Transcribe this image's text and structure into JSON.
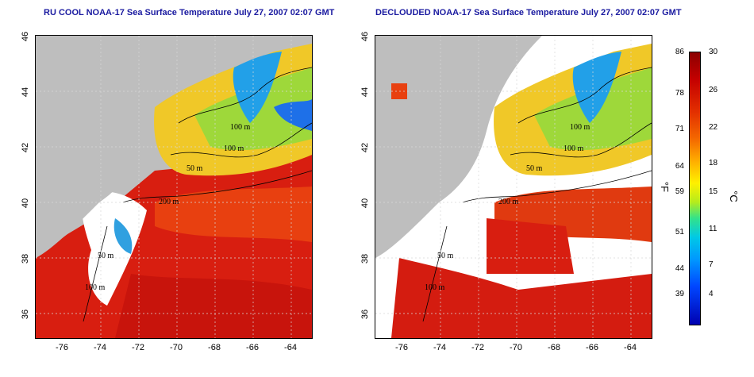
{
  "left_panel": {
    "title": "RU COOL NOAA-17 Sea Surface Temperature July 27, 2007 02:07 GMT"
  },
  "right_panel": {
    "title": "DECLOUDED NOAA-17 Sea Surface Temperature July 27, 2007 02:07 GMT"
  },
  "axes": {
    "lat_ticks": [
      "46",
      "44",
      "42",
      "40",
      "38",
      "36"
    ],
    "lon_ticks": [
      "-76",
      "-74",
      "-72",
      "-70",
      "-68",
      "-66",
      "-64"
    ]
  },
  "contour_labels": {
    "left": [
      "100 m",
      "100 m",
      "50 m",
      "200 m",
      "100 m",
      "50 m"
    ],
    "right": [
      "100 m",
      "100 m",
      "50 m",
      "200 m",
      "100 m",
      "50 m"
    ]
  },
  "colorbar": {
    "fahrenheit_ticks": [
      "86",
      "78",
      "71",
      "64",
      "59",
      "51",
      "44",
      "39"
    ],
    "celsius_ticks": [
      "30",
      "26",
      "22",
      "18",
      "15",
      "11",
      "7",
      "4"
    ],
    "fahrenheit_unit": "°F",
    "celsius_unit": "°C"
  },
  "colors": {
    "land": "#bebebe",
    "cloud": "#ffffff",
    "title": "#1a1aa0"
  }
}
